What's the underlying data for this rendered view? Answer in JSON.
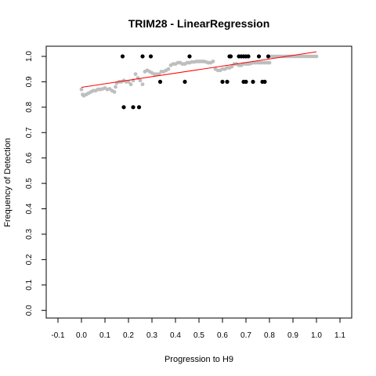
{
  "chart_data": {
    "type": "scatter",
    "title": "TRIM28 - LinearRegression",
    "xlabel": "Progression to H9",
    "ylabel": "Frequency of Detection",
    "xlim": [
      -0.15,
      1.15
    ],
    "ylim": [
      -0.03,
      1.04
    ],
    "xticks": [
      -0.1,
      0.0,
      0.1,
      0.2,
      0.3,
      0.4,
      0.5,
      0.6,
      0.7,
      0.8,
      0.9,
      1.0,
      1.1
    ],
    "xtick_labels": [
      "-0.1",
      "0.0",
      "0.1",
      "0.2",
      "0.3",
      "0.4",
      "0.5",
      "0.6",
      "0.7",
      "0.8",
      "0.9",
      "1.0",
      "1.1"
    ],
    "yticks": [
      0.0,
      0.1,
      0.2,
      0.3,
      0.4,
      0.5,
      0.6,
      0.7,
      0.8,
      0.9,
      1.0
    ],
    "ytick_labels": [
      "0.0",
      "0.1",
      "0.2",
      "0.3",
      "0.4",
      "0.5",
      "0.6",
      "0.7",
      "0.8",
      "0.9",
      "1.0"
    ],
    "grid": false,
    "legend": "none",
    "colors": {
      "observed": "#000000",
      "smoothed": "#bebebe",
      "fit": "#ff0000"
    },
    "series": [
      {
        "kind": "points",
        "color": "#000000",
        "x": [
          0.175,
          0.18,
          0.22,
          0.245,
          0.26,
          0.295,
          0.335,
          0.44,
          0.46,
          0.6,
          0.62,
          0.63,
          0.635,
          0.67,
          0.68,
          0.69,
          0.69,
          0.7,
          0.7,
          0.71,
          0.73,
          0.755,
          0.77,
          0.78,
          0.795
        ],
        "y": [
          1.0,
          0.8,
          0.8,
          0.8,
          1.0,
          1.0,
          0.9,
          0.9,
          1.0,
          0.9,
          0.9,
          1.0,
          1.0,
          1.0,
          1.0,
          0.9,
          1.0,
          0.9,
          1.0,
          1.0,
          0.9,
          1.0,
          0.9,
          0.9,
          1.0
        ]
      },
      {
        "kind": "smoothed-points",
        "color": "#bebebe",
        "x": [
          0.0,
          0.005,
          0.01,
          0.02,
          0.03,
          0.04,
          0.05,
          0.06,
          0.07,
          0.08,
          0.09,
          0.1,
          0.11,
          0.12,
          0.13,
          0.14,
          0.145,
          0.15,
          0.16,
          0.17,
          0.18,
          0.19,
          0.2,
          0.21,
          0.22,
          0.23,
          0.24,
          0.25,
          0.26,
          0.27,
          0.28,
          0.29,
          0.3,
          0.31,
          0.32,
          0.33,
          0.34,
          0.35,
          0.36,
          0.37,
          0.38,
          0.39,
          0.4,
          0.41,
          0.42,
          0.43,
          0.44,
          0.45,
          0.46,
          0.47,
          0.48,
          0.49,
          0.5,
          0.51,
          0.52,
          0.53,
          0.54,
          0.55,
          0.56,
          0.57,
          0.58,
          0.59,
          0.6,
          0.61,
          0.62,
          0.63,
          0.64,
          0.65,
          0.66,
          0.67,
          0.68,
          0.69,
          0.7,
          0.71,
          0.72,
          0.73,
          0.74,
          0.75,
          0.76,
          0.77,
          0.78,
          0.79,
          0.8,
          0.81,
          0.82,
          0.83,
          0.84,
          0.85,
          0.86,
          0.87,
          0.88,
          0.89,
          0.9,
          0.91,
          0.92,
          0.93,
          0.94,
          0.95,
          0.96,
          0.97,
          0.98,
          0.99,
          1.0
        ],
        "y": [
          0.87,
          0.85,
          0.845,
          0.85,
          0.855,
          0.86,
          0.865,
          0.865,
          0.87,
          0.87,
          0.872,
          0.875,
          0.87,
          0.872,
          0.865,
          0.86,
          0.88,
          0.895,
          0.9,
          0.9,
          0.905,
          0.9,
          0.9,
          0.89,
          0.905,
          0.93,
          0.915,
          0.905,
          0.89,
          0.94,
          0.945,
          0.94,
          0.935,
          0.93,
          0.93,
          0.93,
          0.94,
          0.94,
          0.945,
          0.95,
          0.965,
          0.97,
          0.97,
          0.975,
          0.975,
          0.97,
          0.97,
          0.975,
          0.975,
          0.978,
          0.978,
          0.98,
          0.98,
          0.98,
          0.98,
          0.978,
          0.975,
          0.975,
          0.98,
          0.95,
          0.945,
          0.945,
          0.95,
          0.95,
          0.955,
          0.955,
          0.96,
          0.97,
          0.97,
          0.965,
          0.965,
          0.97,
          0.97,
          0.97,
          0.972,
          0.975,
          0.975,
          0.975,
          0.975,
          0.975,
          0.975,
          0.975,
          0.975,
          1.0,
          1.0,
          1.0,
          1.0,
          1.0,
          1.0,
          1.0,
          1.0,
          1.0,
          1.0,
          1.0,
          1.0,
          1.0,
          1.0,
          1.0,
          1.0,
          1.0,
          1.0,
          1.0,
          1.0
        ]
      },
      {
        "kind": "regression-line",
        "color": "#ff0000",
        "x": [
          0.0,
          1.0
        ],
        "y": [
          0.878,
          1.018
        ]
      }
    ]
  }
}
